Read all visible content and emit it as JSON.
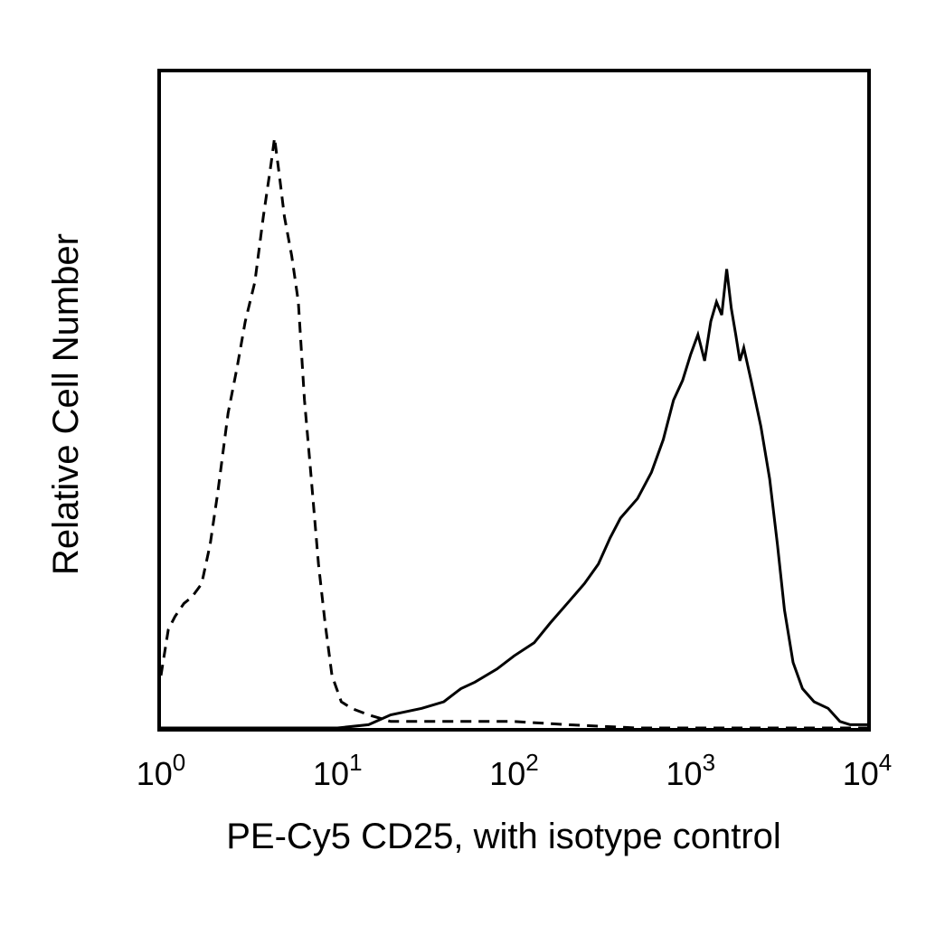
{
  "chart_data": {
    "type": "histogram",
    "xlabel": "PE-Cy5 CD25, with isotype control",
    "ylabel": "Relative Cell Number",
    "x_scale": "log",
    "xlim": [
      1,
      10000
    ],
    "ylim": [
      0,
      100
    ],
    "grid": false,
    "x_ticks": [
      {
        "value": 1,
        "base": "10",
        "exp": "0"
      },
      {
        "value": 10,
        "base": "10",
        "exp": "1"
      },
      {
        "value": 100,
        "base": "10",
        "exp": "2"
      },
      {
        "value": 1000,
        "base": "10",
        "exp": "3"
      },
      {
        "value": 10000,
        "base": "10",
        "exp": "4"
      }
    ],
    "series": [
      {
        "line_style": "dashed",
        "color": "#000000",
        "points": [
          [
            1.0,
            8
          ],
          [
            1.1,
            15
          ],
          [
            1.2,
            17
          ],
          [
            1.35,
            19
          ],
          [
            1.5,
            20
          ],
          [
            1.7,
            22
          ],
          [
            1.9,
            28
          ],
          [
            2.1,
            36
          ],
          [
            2.4,
            48
          ],
          [
            2.7,
            55
          ],
          [
            3.0,
            62
          ],
          [
            3.4,
            68
          ],
          [
            3.8,
            78
          ],
          [
            4.2,
            86
          ],
          [
            4.4,
            90
          ],
          [
            4.7,
            84
          ],
          [
            5.0,
            78
          ],
          [
            5.5,
            72
          ],
          [
            6.0,
            65
          ],
          [
            6.5,
            50
          ],
          [
            7.0,
            40
          ],
          [
            7.8,
            25
          ],
          [
            8.5,
            16
          ],
          [
            9.3,
            8
          ],
          [
            10.5,
            4
          ],
          [
            12.0,
            3
          ],
          [
            15.0,
            2
          ],
          [
            20.0,
            1
          ],
          [
            40.0,
            1
          ],
          [
            100.0,
            1
          ],
          [
            200.0,
            0.5
          ],
          [
            500.0,
            0
          ],
          [
            10000.0,
            0
          ]
        ]
      },
      {
        "line_style": "solid",
        "color": "#000000",
        "points": [
          [
            1.0,
            0
          ],
          [
            10.0,
            0
          ],
          [
            15.0,
            0.5
          ],
          [
            20.0,
            2
          ],
          [
            30.0,
            3
          ],
          [
            40.0,
            4
          ],
          [
            50.0,
            6
          ],
          [
            60.0,
            7
          ],
          [
            80.0,
            9
          ],
          [
            100.0,
            11
          ],
          [
            130.0,
            13
          ],
          [
            160.0,
            16
          ],
          [
            200.0,
            19
          ],
          [
            250.0,
            22
          ],
          [
            300.0,
            25
          ],
          [
            350.0,
            29
          ],
          [
            400.0,
            32
          ],
          [
            500.0,
            35
          ],
          [
            600.0,
            39
          ],
          [
            700.0,
            44
          ],
          [
            800.0,
            50
          ],
          [
            900.0,
            53
          ],
          [
            1000.0,
            57
          ],
          [
            1100.0,
            60
          ],
          [
            1200.0,
            56
          ],
          [
            1300.0,
            62
          ],
          [
            1400.0,
            65
          ],
          [
            1500.0,
            63
          ],
          [
            1600.0,
            70
          ],
          [
            1700.0,
            64
          ],
          [
            1800.0,
            60
          ],
          [
            1900.0,
            56
          ],
          [
            2000.0,
            58
          ],
          [
            2200.0,
            53
          ],
          [
            2500.0,
            46
          ],
          [
            2800.0,
            38
          ],
          [
            3100.0,
            28
          ],
          [
            3400.0,
            18
          ],
          [
            3800.0,
            10
          ],
          [
            4300.0,
            6
          ],
          [
            5000.0,
            4
          ],
          [
            6000.0,
            3
          ],
          [
            7000.0,
            1
          ],
          [
            8000.0,
            0.5
          ],
          [
            10000.0,
            0.5
          ]
        ]
      }
    ]
  }
}
